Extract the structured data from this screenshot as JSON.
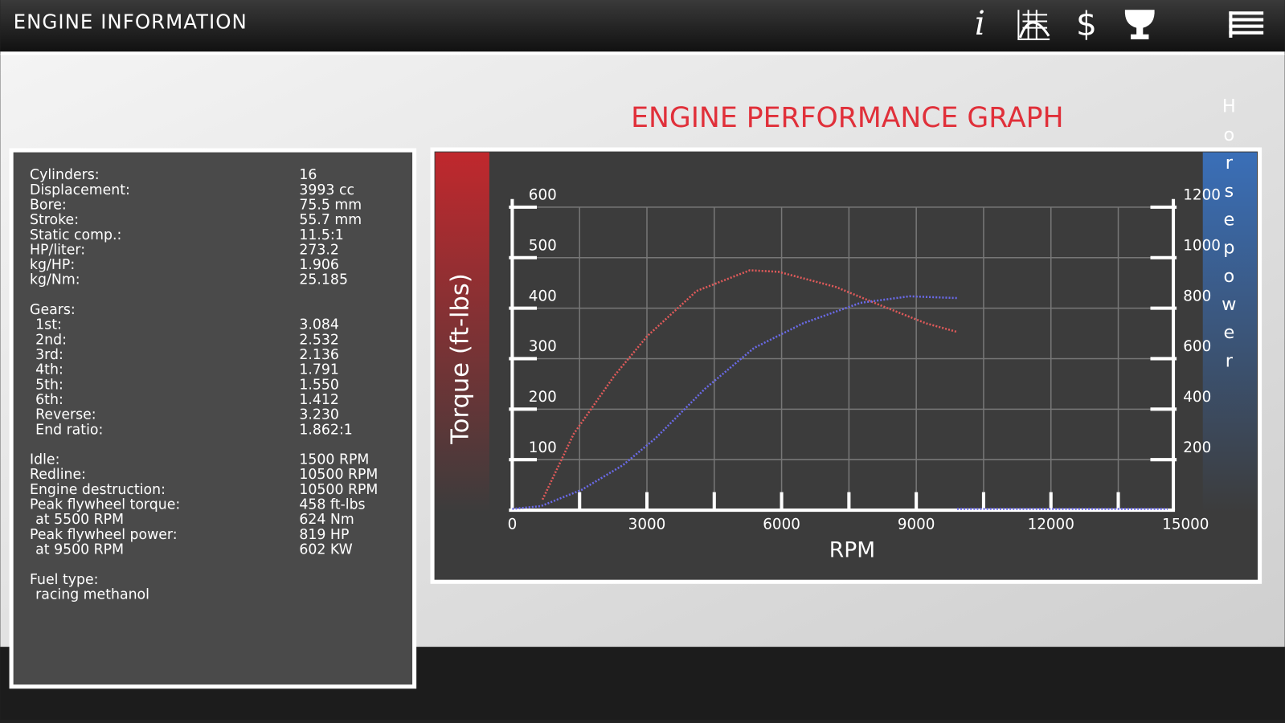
{
  "header": {
    "title": "ENGINE INFORMATION",
    "info_icon": "i",
    "price_icon": "$"
  },
  "specs": {
    "groups": [
      {
        "rows": [
          {
            "label": "Cylinders:",
            "value": "16"
          },
          {
            "label": "Displacement:",
            "value": "3993 cc"
          },
          {
            "label": "Bore:",
            "value": "75.5 mm"
          },
          {
            "label": "Stroke:",
            "value": "55.7 mm"
          },
          {
            "label": "Static comp.:",
            "value": "11.5:1"
          },
          {
            "label": "HP/liter:",
            "value": "273.2"
          },
          {
            "label": "kg/HP:",
            "value": "1.906"
          },
          {
            "label": "kg/Nm:",
            "value": "25.185"
          }
        ]
      },
      {
        "heading": "Gears:",
        "rows": [
          {
            "label": "1st:",
            "value": "3.084"
          },
          {
            "label": "2nd:",
            "value": "2.532"
          },
          {
            "label": "3rd:",
            "value": "2.136"
          },
          {
            "label": "4th:",
            "value": "1.791"
          },
          {
            "label": "5th:",
            "value": "1.550"
          },
          {
            "label": "6th:",
            "value": "1.412"
          },
          {
            "label": "Reverse:",
            "value": "3.230"
          },
          {
            "label": "End ratio:",
            "value": "1.862:1"
          }
        ]
      },
      {
        "rows": [
          {
            "label": "Idle:",
            "value": "1500 RPM"
          },
          {
            "label": "Redline:",
            "value": "10500 RPM"
          },
          {
            "label": "Engine destruction:",
            "value": "10500 RPM"
          },
          {
            "label": "Peak flywheel torque:",
            "value": "458 ft-lbs"
          },
          {
            "label": "at 5500 RPM",
            "value": "624 Nm"
          },
          {
            "label": "Peak flywheel power:",
            "value": "819 HP"
          },
          {
            "label": "at 9500 RPM",
            "value": "602 KW"
          }
        ]
      },
      {
        "heading": "Fuel type:",
        "value": "racing methanol"
      }
    ]
  },
  "chart_data": {
    "type": "line",
    "title": "ENGINE PERFORMANCE GRAPH",
    "x_label": "RPM",
    "y_label": "Torque (ft-lbs)",
    "y2_label": "Horsepower",
    "xlim": [
      0,
      15000
    ],
    "xticks": [
      0,
      3000,
      6000,
      9000,
      12000,
      15000
    ],
    "x_minor_ticks": [
      1500,
      3000,
      4500,
      6000,
      7500,
      9000,
      10500,
      12000,
      13500
    ],
    "ylim": [
      0,
      600
    ],
    "yticks": [
      100,
      200,
      300,
      400,
      500,
      600
    ],
    "y2lim": [
      0,
      1200
    ],
    "y2ticks": [
      200,
      400,
      600,
      800,
      1000,
      1200
    ],
    "grid": true,
    "series": [
      {
        "color": "#e05a5a",
        "x": [
          675,
          1369,
          2281,
          3011,
          4106,
          5292,
          5931,
          7208,
          8303,
          9215,
          9909
        ],
        "values": [
          21,
          151,
          267,
          345,
          434,
          475,
          472,
          442,
          402,
          370,
          353
        ]
      },
      {
        "color": "#6a6ae8",
        "axis": "y2",
        "x": [
          0,
          639,
          1551,
          2463,
          3193,
          4288,
          5383,
          6478,
          7755,
          8850,
          9909
        ],
        "values": [
          5,
          16,
          81,
          178,
          285,
          480,
          642,
          740,
          821,
          847,
          840
        ]
      },
      {
        "color": "#6a6ae8",
        "axis": "y2",
        "x": [
          9909,
          14600
        ],
        "values": [
          5,
          5
        ]
      }
    ]
  }
}
